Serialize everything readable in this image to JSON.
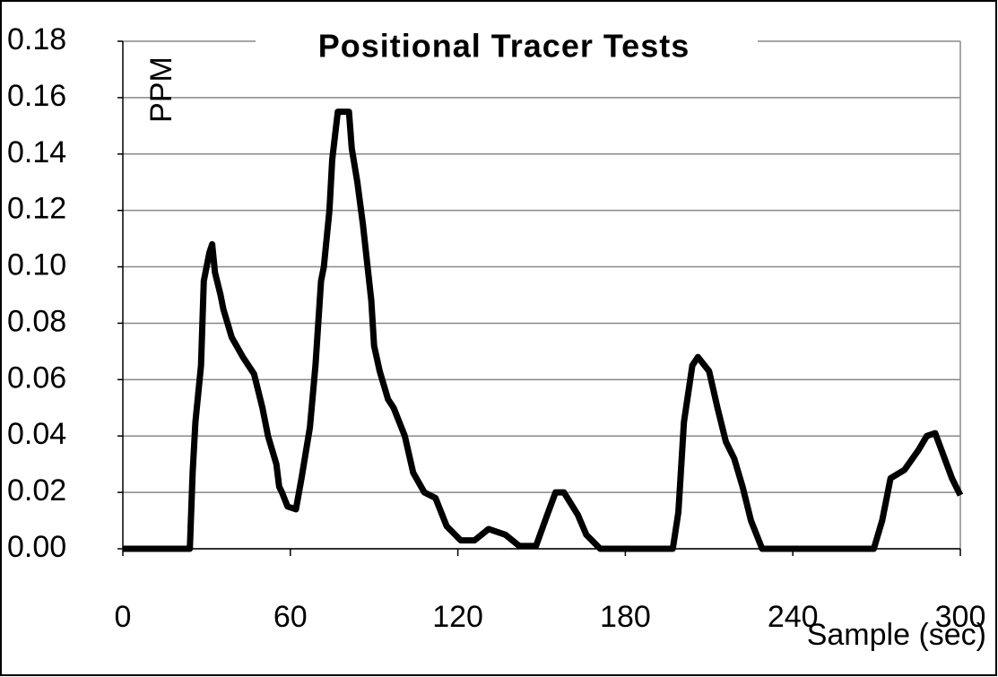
{
  "chart_data": {
    "type": "line",
    "title": "Positional Tracer Tests",
    "y_label": "PPM",
    "x_label": "Sample (sec)",
    "xlim": [
      0,
      300
    ],
    "xticks": [
      0,
      60,
      120,
      180,
      240,
      300
    ],
    "ylim": [
      0,
      0.18
    ],
    "yticks": [
      {
        "value": 0,
        "label": "0.00"
      },
      {
        "value": 0.02,
        "label": "0.02"
      },
      {
        "value": 0.04,
        "label": "0.04"
      },
      {
        "value": 0.06,
        "label": "0.06"
      },
      {
        "value": 0.08,
        "label": "0.08"
      },
      {
        "value": 0.1,
        "label": "0.10"
      },
      {
        "value": 0.12,
        "label": "0.12"
      },
      {
        "value": 0.14,
        "label": "0.14"
      },
      {
        "value": 0.16,
        "label": "0.16"
      },
      {
        "value": 0.18,
        "label": "0.18"
      }
    ],
    "grid": true,
    "x": [
      0,
      10,
      20,
      24,
      25,
      26,
      28,
      29,
      31,
      32,
      33,
      35,
      36,
      39,
      43,
      47,
      50,
      51,
      52,
      55,
      56,
      57,
      59,
      62,
      64,
      67,
      69,
      71,
      72,
      74,
      75,
      77,
      81,
      82,
      84,
      86,
      89,
      90,
      92,
      95,
      97,
      101,
      104,
      108,
      112,
      116,
      121,
      126,
      131,
      137,
      142,
      148,
      152,
      155,
      158,
      163,
      166,
      171,
      180,
      190,
      197,
      199,
      201,
      204,
      206,
      210,
      213,
      216,
      219,
      222,
      225,
      229,
      240,
      255,
      269,
      272,
      275,
      280,
      285,
      288,
      291,
      294,
      297,
      300
    ],
    "series": [
      {
        "color": "#000000",
        "values": [
          0,
          0,
          0,
          0,
          0.027,
          0.045,
          0.065,
          0.095,
          0.105,
          0.108,
          0.098,
          0.09,
          0.085,
          0.075,
          0.068,
          0.062,
          0.05,
          0.045,
          0.04,
          0.03,
          0.022,
          0.02,
          0.015,
          0.014,
          0.025,
          0.043,
          0.065,
          0.095,
          0.1,
          0.12,
          0.138,
          0.155,
          0.155,
          0.142,
          0.13,
          0.115,
          0.088,
          0.072,
          0.063,
          0.053,
          0.05,
          0.04,
          0.027,
          0.02,
          0.018,
          0.008,
          0.003,
          0.003,
          0.007,
          0.005,
          0.001,
          0.001,
          0.012,
          0.02,
          0.02,
          0.012,
          0.005,
          0,
          0,
          0,
          0,
          0.013,
          0.045,
          0.065,
          0.068,
          0.063,
          0.05,
          0.038,
          0.032,
          0.022,
          0.01,
          0,
          0,
          0,
          0,
          0.01,
          0.025,
          0.028,
          0.035,
          0.04,
          0.041,
          0.033,
          0.025,
          0.019
        ]
      }
    ]
  }
}
